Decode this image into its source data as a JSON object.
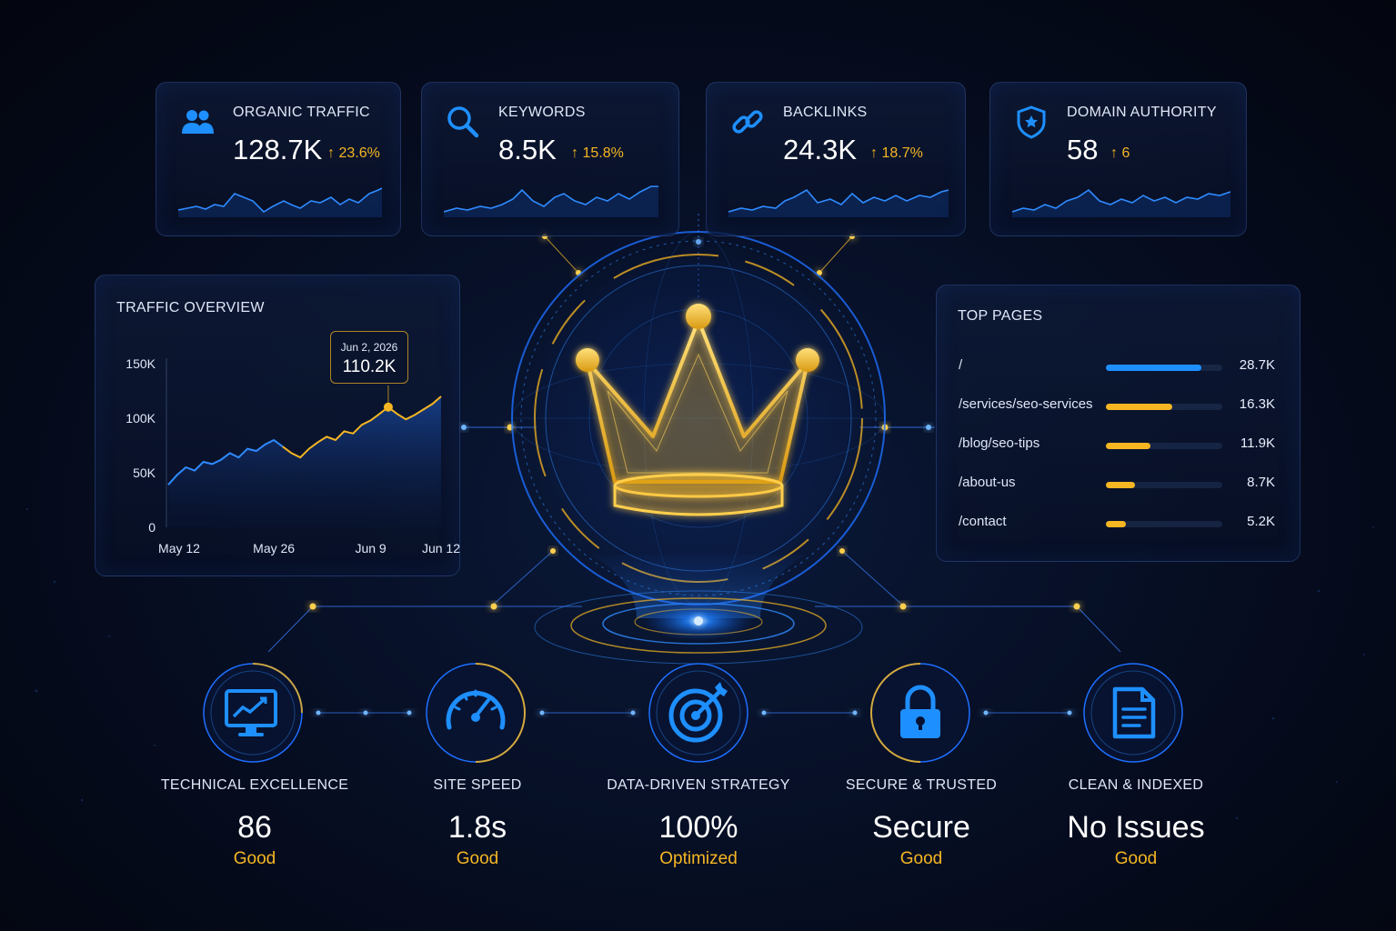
{
  "accent_blue": "#1e8fff",
  "accent_gold": "#f5b622",
  "stats": [
    {
      "label": "ORGANIC TRAFFIC",
      "value": "128.7K",
      "delta": "23.6%",
      "icon": "users-icon"
    },
    {
      "label": "KEYWORDS",
      "value": "8.5K",
      "delta": "15.8%",
      "icon": "search-icon"
    },
    {
      "label": "BACKLINKS",
      "value": "24.3K",
      "delta": "18.7%",
      "icon": "link-icon"
    },
    {
      "label": "DOMAIN AUTHORITY",
      "value": "58",
      "delta": "6",
      "icon": "shield-star-icon"
    }
  ],
  "traffic": {
    "title": "TRAFFIC OVERVIEW",
    "tooltip_date": "Jun 2, 2026",
    "tooltip_value": "110.2K"
  },
  "chart_data": {
    "type": "area",
    "title": "TRAFFIC OVERVIEW",
    "y_ticks": [
      "150K",
      "100K",
      "50K",
      "0"
    ],
    "x_ticks": [
      "May 12",
      "May 26",
      "Jun 9",
      "Jun 12"
    ],
    "ylim": [
      0,
      150000
    ],
    "x": [
      0,
      1,
      2,
      3,
      4,
      5,
      6,
      7,
      8,
      9,
      10,
      11,
      12,
      13,
      14,
      15,
      16,
      17,
      18,
      19,
      20,
      21,
      22,
      23,
      24,
      25,
      26,
      27,
      28,
      29,
      30,
      31
    ],
    "values": [
      39000,
      48000,
      55000,
      52000,
      60000,
      58000,
      62000,
      68000,
      64000,
      72000,
      70000,
      76000,
      80000,
      74000,
      68000,
      64000,
      72000,
      78000,
      83000,
      80000,
      88000,
      86000,
      94000,
      98000,
      104000,
      110200,
      104000,
      99000,
      103000,
      108000,
      113000,
      120000
    ],
    "highlight_index": 25,
    "grid": false
  },
  "top_pages": {
    "title": "TOP PAGES",
    "rows": [
      {
        "path": "/",
        "value": "28.7K",
        "fraction": 0.82,
        "color": "#1e8fff"
      },
      {
        "path": "/services/seo-services",
        "value": "16.3K",
        "fraction": 0.57,
        "color": "#f5b622"
      },
      {
        "path": "/blog/seo-tips",
        "value": "11.9K",
        "fraction": 0.38,
        "color": "#f5b622"
      },
      {
        "path": "/about-us",
        "value": "8.7K",
        "fraction": 0.25,
        "color": "#f5b622"
      },
      {
        "path": "/contact",
        "value": "5.2K",
        "fraction": 0.17,
        "color": "#f5b622"
      }
    ]
  },
  "metrics": [
    {
      "label": "TECHNICAL EXCELLENCE",
      "value": "86",
      "status": "Good",
      "icon": "monitor-chart-icon"
    },
    {
      "label": "SITE SPEED",
      "value": "1.8s",
      "status": "Good",
      "icon": "speedometer-icon"
    },
    {
      "label": "DATA-DRIVEN STRATEGY",
      "value": "100%",
      "status": "Optimized",
      "icon": "target-icon"
    },
    {
      "label": "SECURE & TRUSTED",
      "value": "Secure",
      "status": "Good",
      "icon": "lock-icon"
    },
    {
      "label": "CLEAN & INDEXED",
      "value": "No Issues",
      "status": "Good",
      "icon": "document-icon"
    }
  ],
  "center_icon": "crown-icon"
}
